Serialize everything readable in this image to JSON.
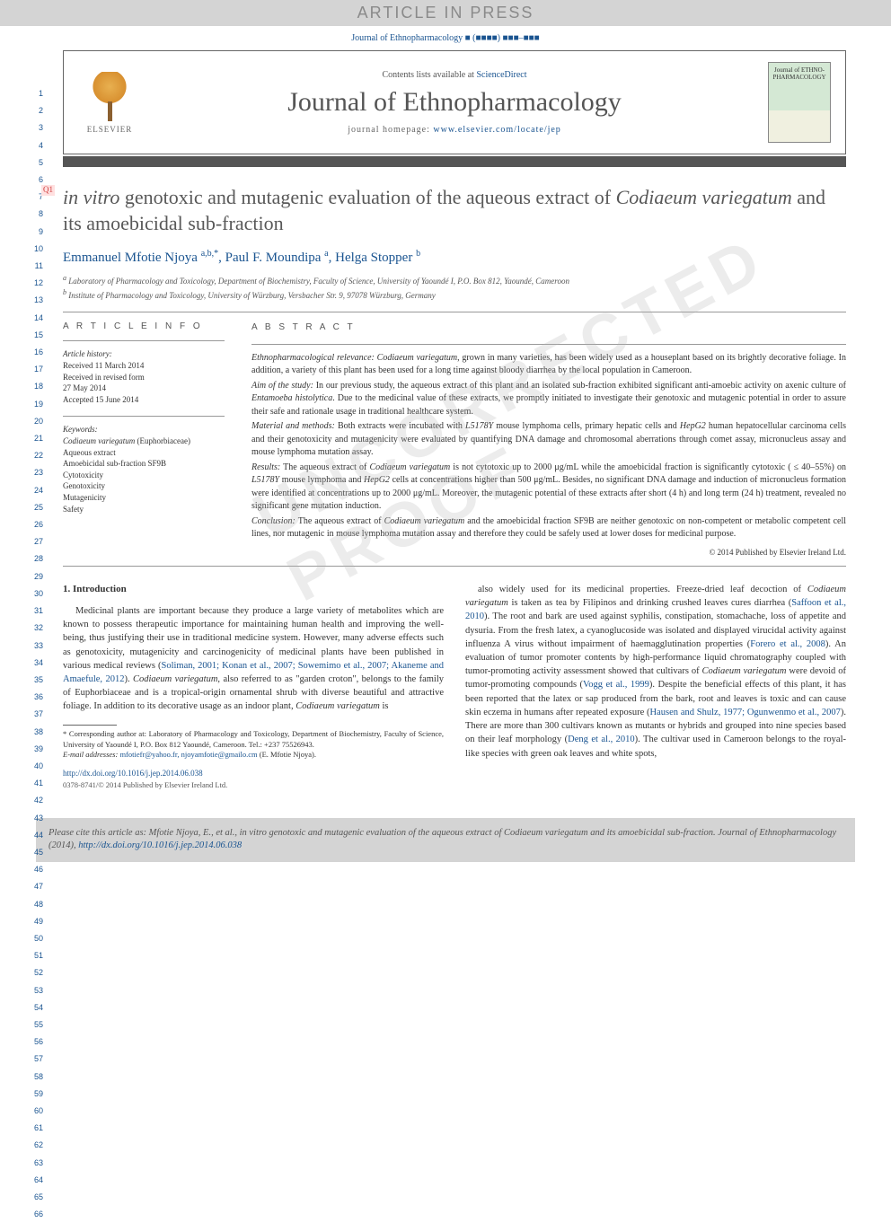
{
  "banner": "ARTICLE IN PRESS",
  "topCitation": "Journal of Ethnopharmacology ■ (■■■■) ■■■–■■■",
  "header": {
    "contentsPrefix": "Contents lists available at ",
    "contentsLink": "ScienceDirect",
    "journalName": "Journal of Ethnopharmacology",
    "homepagePrefix": "journal homepage: ",
    "homepageLink": "www.elsevier.com/locate/jep",
    "elsevierLabel": "ELSEVIER",
    "coverText": "Journal of ETHNO-PHARMACOLOGY"
  },
  "lineNumbers": {
    "start": 1,
    "end": 66
  },
  "qMarker": "Q1",
  "title": {
    "part1": "in vitro",
    "part2": " genotoxic and mutagenic evaluation of the aqueous extract of ",
    "part3": "Codiaeum variegatum",
    "part4": " and its amoebicidal sub-fraction"
  },
  "authors": [
    {
      "name": "Emmanuel Mfotie Njoya",
      "sup": "a,b,*"
    },
    {
      "name": "Paul F. Moundipa",
      "sup": "a"
    },
    {
      "name": "Helga Stopper",
      "sup": "b"
    }
  ],
  "affiliations": [
    {
      "sup": "a",
      "text": "Laboratory of Pharmacology and Toxicology, Department of Biochemistry, Faculty of Science, University of Yaoundé I, P.O. Box 812, Yaoundé, Cameroon"
    },
    {
      "sup": "b",
      "text": "Institute of Pharmacology and Toxicology, University of Würzburg, Versbacher Str. 9, 97078 Würzburg, Germany"
    }
  ],
  "articleInfo": {
    "heading": "A R T I C L E  I N F O",
    "historyLabel": "Article history:",
    "history": [
      "Received 11 March 2014",
      "Received in revised form",
      "27 May 2014",
      "Accepted 15 June 2014"
    ],
    "keywordsLabel": "Keywords:",
    "keywords": [
      "Codiaeum variegatum (Euphorbiaceae)",
      "Aqueous extract",
      "Amoebicidal sub-fraction SF9B",
      "Cytotoxicity",
      "Genotoxicity",
      "Mutagenicity",
      "Safety"
    ]
  },
  "abstract": {
    "heading": "A B S T R A C T",
    "paragraphs": [
      {
        "label": "Ethnopharmacological relevance:",
        "text": " Codiaeum variegatum, grown in many varieties, has been widely used as a houseplant based on its brightly decorative foliage. In addition, a variety of this plant has been used for a long time against bloody diarrhea by the local population in Cameroon."
      },
      {
        "label": "Aim of the study:",
        "text": " In our previous study, the aqueous extract of this plant and an isolated sub-fraction exhibited significant anti-amoebic activity on axenic culture of Entamoeba histolytica. Due to the medicinal value of these extracts, we promptly initiated to investigate their genotoxic and mutagenic potential in order to assure their safe and rationale usage in traditional healthcare system."
      },
      {
        "label": "Material and methods:",
        "text": " Both extracts were incubated with L5178Y mouse lymphoma cells, primary hepatic cells and HepG2 human hepatocellular carcinoma cells and their genotoxicity and mutagenicity were evaluated by quantifying DNA damage and chromosomal aberrations through comet assay, micronucleus assay and mouse lymphoma mutation assay."
      },
      {
        "label": "Results:",
        "text": " The aqueous extract of Codiaeum variegatum is not cytotoxic up to 2000 μg/mL while the amoebicidal fraction is significantly cytotoxic ( ≤ 40–55%) on L5178Y mouse lymphoma and HepG2 cells at concentrations higher than 500 μg/mL. Besides, no significant DNA damage and induction of micronucleus formation were identified at concentrations up to 2000 μg/mL. Moreover, the mutagenic potential of these extracts after short (4 h) and long term (24 h) treatment, revealed no significant gene mutation induction."
      },
      {
        "label": "Conclusion:",
        "text": " The aqueous extract of Codiaeum variegatum and the amoebicidal fraction SF9B are neither genotoxic on non-competent or metabolic competent cell lines, nor mutagenic in mouse lymphoma mutation assay and therefore they could be safely used at lower doses for medicinal purpose."
      }
    ],
    "copyright": "© 2014 Published by Elsevier Ireland Ltd."
  },
  "intro": {
    "heading": "1.  Introduction",
    "col1": "Medicinal plants are important because they produce a large variety of metabolites which are known to possess therapeutic importance for maintaining human health and improving the well-being, thus justifying their use in traditional medicine system. However, many adverse effects such as genotoxicity, mutagenicity and carcinogenicity of medicinal plants have been published in various medical reviews (Soliman, 2001; Konan et al., 2007; Sowemimo et al., 2007; Akaneme and Amaefule, 2012). Codiaeum variegatum, also referred to as \"garden croton\", belongs to the family of Euphorbiaceae and is a tropical-origin ornamental shrub with diverse beautiful and attractive foliage. In addition to its decorative usage as an indoor plant, Codiaeum variegatum is",
    "col2": "also widely used for its medicinal properties. Freeze-dried leaf decoction of Codiaeum variegatum is taken as tea by Filipinos and drinking crushed leaves cures diarrhea (Saffoon et al., 2010). The root and bark are used against syphilis, constipation, stomachache, loss of appetite and dysuria. From the fresh latex, a cyanoglucoside was isolated and displayed virucidal activity against influenza A virus without impairment of haemagglutination properties (Forero et al., 2008). An evaluation of tumor promoter contents by high-performance liquid chromatography coupled with tumor-promoting activity assessment showed that cultivars of Codiaeum variegatum were devoid of tumor-promoting compounds (Vogg et al., 1999). Despite the beneficial effects of this plant, it has been reported that the latex or sap produced from the bark, root and leaves is toxic and can cause skin eczema in humans after repeated exposure (Hausen and Shulz, 1977; Ogunwenmo et al., 2007). There are more than 300 cultivars known as mutants or hybrids and grouped into nine species based on their leaf morphology (Deng et al., 2010). The cultivar used in Cameroon belongs to the royal-like species with green oak leaves and white spots,"
  },
  "footnotes": {
    "corresponding": "* Corresponding author at: Laboratory of Pharmacology and Toxicology, Department of Biochemistry, Faculty of Science, University of Yaoundé I, P.O. Box 812 Yaoundé, Cameroon. Tel.: +237 75526943.",
    "emailLabel": "E-mail addresses: ",
    "emails": "mfotiefr@yahoo.fr, njoyamfotie@gmailo.cm",
    "emailSuffix": " (E. Mfotie Njoya)."
  },
  "doi": {
    "link": "http://dx.doi.org/10.1016/j.jep.2014.06.038",
    "issn": "0378-8741/© 2014 Published by Elsevier Ireland Ltd."
  },
  "citeBox": {
    "prefix": "Please cite this article as: Mfotie Njoya, E., et al., ",
    "italicTitle": "in vitro",
    "mid": " genotoxic and mutagenic evaluation of the aqueous extract of ",
    "italicSpecies": "Codiaeum variegatum",
    "suffix": " and its amoebicidal sub-fraction. Journal of Ethnopharmacology (2014), ",
    "link": "http://dx.doi.org/10.1016/j.jep.2014.06.038"
  },
  "colors": {
    "bannerBg": "#d4d4d4",
    "bannerText": "#8a8a8a",
    "link": "#1a5490",
    "bodyText": "#333333",
    "headingGray": "#585858",
    "watermark": "rgba(180,180,180,0.25)"
  }
}
